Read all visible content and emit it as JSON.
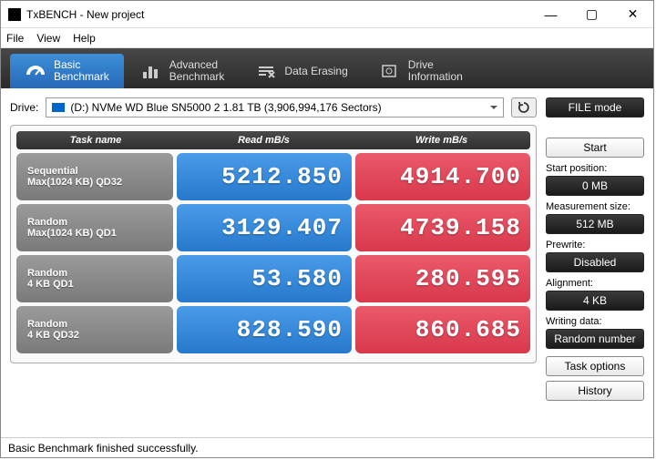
{
  "window": {
    "title": "TxBENCH - New project"
  },
  "menu": {
    "file": "File",
    "view": "View",
    "help": "Help"
  },
  "tabs": [
    {
      "label": "Basic\nBenchmark",
      "active": true
    },
    {
      "label": "Advanced\nBenchmark",
      "active": false
    },
    {
      "label": "Data Erasing",
      "active": false
    },
    {
      "label": "Drive\nInformation",
      "active": false
    }
  ],
  "drive": {
    "label": "Drive:",
    "selected": "(D:) NVMe WD Blue SN5000 2   1.81 TB (3,906,994,176 Sectors)"
  },
  "headers": {
    "task": "Task name",
    "read": "Read mB/s",
    "write": "Write mB/s"
  },
  "tests": [
    {
      "name1": "Sequential",
      "name2": "Max(1024 KB) QD32",
      "read": "5212.850",
      "write": "4914.700"
    },
    {
      "name1": "Random",
      "name2": "Max(1024 KB) QD1",
      "read": "3129.407",
      "write": "4739.158"
    },
    {
      "name1": "Random",
      "name2": "4 KB QD1",
      "read": "53.580",
      "write": "280.595"
    },
    {
      "name1": "Random",
      "name2": "4 KB QD32",
      "read": "828.590",
      "write": "860.685"
    }
  ],
  "side": {
    "file_mode": "FILE mode",
    "start": "Start",
    "start_pos_label": "Start position:",
    "start_pos": "0 MB",
    "meas_label": "Measurement size:",
    "meas": "512 MB",
    "prewrite_label": "Prewrite:",
    "prewrite": "Disabled",
    "align_label": "Alignment:",
    "align": "4 KB",
    "writing_label": "Writing data:",
    "writing": "Random number",
    "task_options": "Task options",
    "history": "History"
  },
  "status": "Basic Benchmark finished successfully.",
  "colors": {
    "read_grad_top": "#4a9ce8",
    "read_grad_bot": "#2678cc",
    "write_grad_top": "#ea5a6a",
    "write_grad_bot": "#d8384c",
    "tab_active_top": "#3c8fd8",
    "tab_active_bot": "#2768b8",
    "tabbar_top": "#484848",
    "tabbar_bot": "#2b2b2b"
  }
}
